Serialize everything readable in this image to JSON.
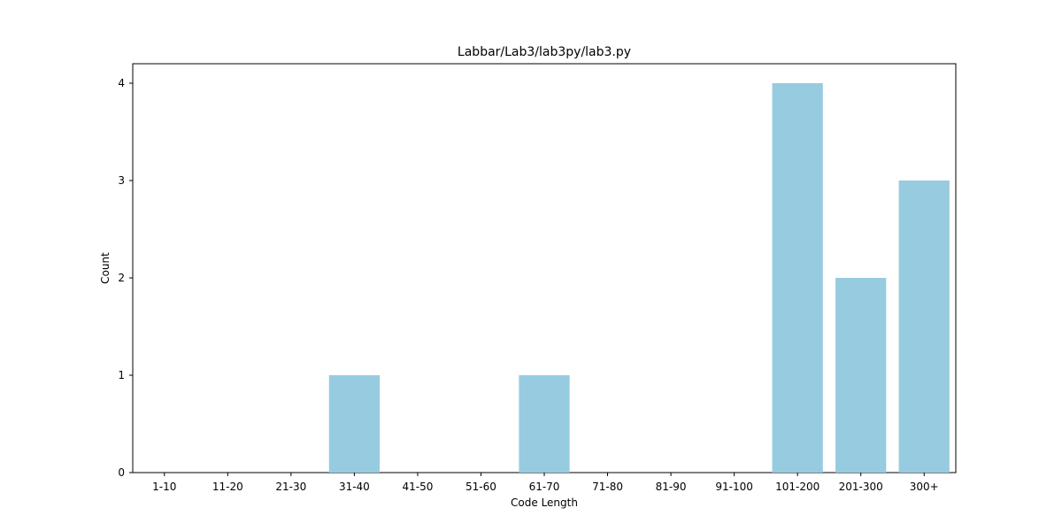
{
  "chart_data": {
    "type": "bar",
    "title": "Labbar/Lab3/lab3py/lab3.py",
    "xlabel": "Code Length",
    "ylabel": "Count",
    "categories": [
      "1-10",
      "11-20",
      "21-30",
      "31-40",
      "41-50",
      "51-60",
      "61-70",
      "71-80",
      "81-90",
      "91-100",
      "101-200",
      "201-300",
      "300+"
    ],
    "values": [
      0,
      0,
      0,
      1,
      0,
      0,
      1,
      0,
      0,
      0,
      4,
      2,
      3
    ],
    "ylim": [
      0,
      4.2
    ],
    "yticks": [
      0,
      1,
      2,
      3,
      4
    ],
    "bar_color": "#96cbe0",
    "grid": false,
    "legend": "none"
  }
}
